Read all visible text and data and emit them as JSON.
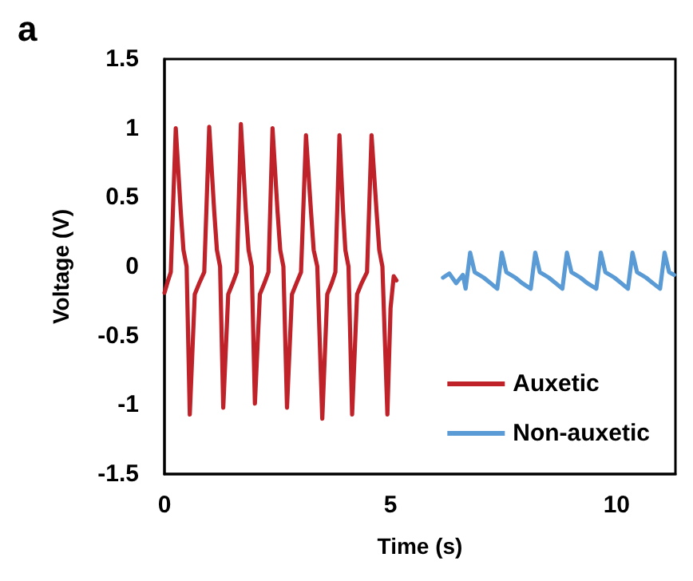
{
  "chart_data": {
    "type": "line",
    "title": "a",
    "xlabel": "Time (s)",
    "ylabel": "Voltage (V)",
    "xlim": [
      0,
      11.3
    ],
    "xticks": [
      0,
      5,
      10
    ],
    "ylim": [
      -1.5,
      1.5
    ],
    "yticks": [
      -1.5,
      -1,
      -0.5,
      0,
      0.5,
      1,
      1.5
    ],
    "grid": false,
    "legend": "bottom right",
    "marker": "none",
    "line_style": "solid",
    "series": [
      {
        "name": "Auxetic",
        "color": "#c0222a",
        "x": [
          0,
          0.08,
          0.14,
          0.25,
          0.36,
          0.42,
          0.49,
          0.56,
          0.67,
          0.77,
          0.88,
          0.99,
          1.1,
          1.16,
          1.23,
          1.3,
          1.41,
          1.51,
          1.6,
          1.69,
          1.8,
          1.86,
          1.93,
          2.0,
          2.11,
          2.21,
          2.3,
          2.39,
          2.5,
          2.56,
          2.63,
          2.71,
          2.82,
          2.92,
          3.02,
          3.13,
          3.24,
          3.3,
          3.38,
          3.49,
          3.6,
          3.7,
          3.78,
          3.87,
          3.95,
          4.0,
          4.07,
          4.15,
          4.26,
          4.36,
          4.48,
          4.58,
          4.69,
          4.75,
          4.82,
          4.93,
          5.0,
          5.07,
          5.13
        ],
        "values": [
          -0.19,
          -0.1,
          -0.04,
          1.0,
          0.4,
          0.12,
          0,
          -1.07,
          -0.2,
          -0.12,
          -0.04,
          1.01,
          0.4,
          0.12,
          0,
          -1.02,
          -0.2,
          -0.12,
          -0.04,
          1.03,
          0.4,
          0.12,
          0,
          -0.99,
          -0.2,
          -0.12,
          -0.04,
          1.0,
          0.4,
          0.12,
          0,
          -1.02,
          -0.2,
          -0.12,
          -0.04,
          0.95,
          0.4,
          0.12,
          0,
          -1.1,
          -0.2,
          -0.12,
          -0.04,
          0.95,
          0.4,
          0.12,
          0,
          -1.07,
          -0.2,
          -0.12,
          -0.04,
          0.95,
          0.4,
          0.12,
          0,
          -1.07,
          -0.3,
          -0.07,
          -0.1
        ]
      },
      {
        "name": "Non-auxetic",
        "color": "#5b9bd5",
        "x": [
          6.16,
          6.3,
          6.45,
          6.6,
          6.66,
          6.76,
          6.86,
          7.06,
          7.21,
          7.36,
          7.46,
          7.56,
          7.76,
          7.91,
          8.1,
          8.2,
          8.3,
          8.5,
          8.65,
          8.8,
          8.9,
          9.0,
          9.2,
          9.35,
          9.55,
          9.65,
          9.75,
          9.95,
          10.1,
          10.25,
          10.35,
          10.45,
          10.65,
          10.8,
          10.96,
          11.06,
          11.16,
          11.27
        ],
        "values": [
          -0.08,
          -0.05,
          -0.12,
          -0.06,
          -0.16,
          0.1,
          -0.04,
          -0.08,
          -0.12,
          -0.16,
          0.1,
          -0.04,
          -0.08,
          -0.12,
          -0.16,
          0.1,
          -0.04,
          -0.08,
          -0.12,
          -0.16,
          0.1,
          -0.04,
          -0.08,
          -0.12,
          -0.16,
          0.1,
          -0.04,
          -0.08,
          -0.12,
          -0.16,
          0.1,
          -0.04,
          -0.08,
          -0.12,
          -0.16,
          0.1,
          -0.04,
          -0.06
        ]
      }
    ]
  }
}
